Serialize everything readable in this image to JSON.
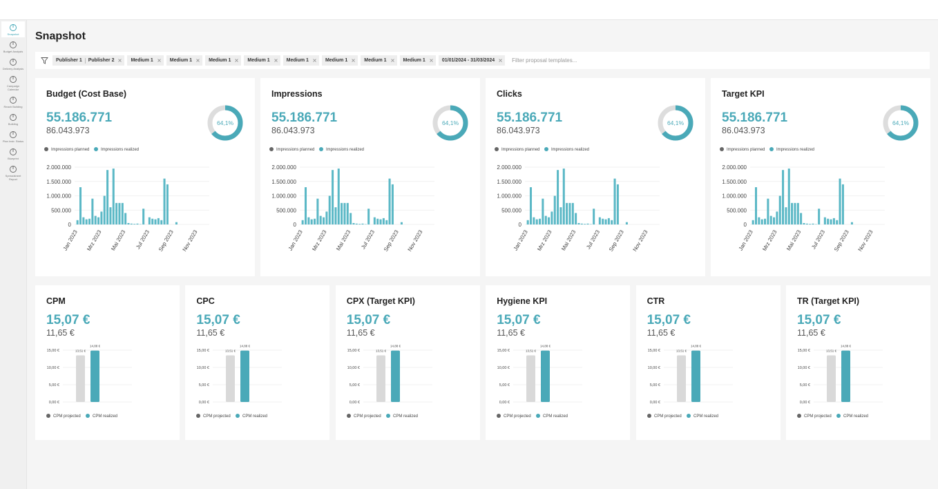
{
  "header": {
    "title": "Snapshot"
  },
  "sidebar": [
    "Snapshot",
    "Budget Analysis",
    "Delivery Analysis",
    "Campaign Calendar",
    "Reach Building",
    "Building",
    "Plan Instr. Status",
    "Blueprint",
    "Spreadsheet Report"
  ],
  "filters": {
    "chips": [
      [
        "Publisher 1",
        "Publisher 2"
      ],
      [
        "Medium 1"
      ],
      [
        "Medium 1"
      ],
      [
        "Medium 1"
      ],
      [
        "Medium 1"
      ],
      [
        "Medium 1"
      ],
      [
        "Medium 1"
      ],
      [
        "Medium 1"
      ],
      [
        "Medium 1"
      ],
      [
        "01/01/2024 - 31/03/2024"
      ]
    ],
    "placeholder": "Filter proposal templates..."
  },
  "chart_data": [
    {
      "type": "bar",
      "title": "Budget (Cost Base)",
      "kpi_value": "55.186.771",
      "kpi_sub": "86.043.973",
      "gauge_value": 64.1,
      "gauge_label": "64,1%",
      "color": "#5bb8c6",
      "legend": [
        {
          "name": "Impressions planned",
          "color": "#666666"
        },
        {
          "name": "Impressions realized",
          "color": "#4aa9b8"
        }
      ],
      "categories": [
        "Jan 2023",
        null,
        null,
        null,
        null,
        null,
        null,
        null,
        "Mrz 2023",
        null,
        null,
        null,
        null,
        null,
        null,
        null,
        "Mai 2023",
        null,
        null,
        null,
        null,
        null,
        null,
        null,
        "Jul 2023",
        null,
        null,
        null,
        null,
        null,
        null,
        null,
        "Sep 2023",
        null,
        null,
        null,
        null,
        null,
        null,
        null,
        "Nov 2023",
        null,
        null,
        null
      ],
      "values": [
        150000,
        1300000,
        250000,
        180000,
        200000,
        900000,
        300000,
        250000,
        450000,
        1000000,
        1900000,
        600000,
        1950000,
        750000,
        750000,
        750000,
        400000,
        50000,
        30000,
        20000,
        30000,
        10000,
        550000,
        0,
        250000,
        200000,
        180000,
        220000,
        150000,
        1600000,
        1400000,
        0,
        0,
        80000,
        0,
        0,
        0,
        0,
        0,
        0,
        0,
        0,
        0,
        0
      ],
      "ylim": [
        0,
        2000000
      ],
      "yticks": [
        0,
        {
          "value": 500000,
          "label": "500.000"
        },
        {
          "value": 1000000,
          "label": "1.000.000"
        },
        {
          "value": 1500000,
          "label": "1.500.000"
        },
        {
          "value": 2000000,
          "label": "2.000.000"
        }
      ],
      "grid": true
    },
    {
      "type": "bar",
      "title": "Impressions",
      "kpi_value": "55.186.771",
      "kpi_sub": "86.043.973",
      "gauge_value": 64.1,
      "gauge_label": "64,1%",
      "color": "#5bb8c6",
      "legend": [
        {
          "name": "Impressions planned",
          "color": "#666666"
        },
        {
          "name": "Impressions realized",
          "color": "#4aa9b8"
        }
      ],
      "categories": [
        "Jan 2023",
        null,
        null,
        null,
        null,
        null,
        null,
        null,
        "Mrz 2023",
        null,
        null,
        null,
        null,
        null,
        null,
        null,
        "Mai 2023",
        null,
        null,
        null,
        null,
        null,
        null,
        null,
        "Jul 2023",
        null,
        null,
        null,
        null,
        null,
        null,
        null,
        "Sep 2023",
        null,
        null,
        null,
        null,
        null,
        null,
        null,
        "Nov 2023",
        null,
        null,
        null
      ],
      "values": [
        150000,
        1300000,
        250000,
        180000,
        200000,
        900000,
        300000,
        250000,
        450000,
        1000000,
        1900000,
        600000,
        1950000,
        750000,
        750000,
        750000,
        400000,
        50000,
        30000,
        20000,
        30000,
        10000,
        550000,
        0,
        250000,
        200000,
        180000,
        220000,
        150000,
        1600000,
        1400000,
        0,
        0,
        80000,
        0,
        0,
        0,
        0,
        0,
        0,
        0,
        0,
        0,
        0
      ],
      "ylim": [
        0,
        2000000
      ],
      "yticks": [
        0,
        {
          "value": 500000,
          "label": "500.000"
        },
        {
          "value": 1000000,
          "label": "1.000.000"
        },
        {
          "value": 1500000,
          "label": "1.500.000"
        },
        {
          "value": 2000000,
          "label": "2.000.000"
        }
      ],
      "grid": true
    },
    {
      "type": "bar",
      "title": "Clicks",
      "kpi_value": "55.186.771",
      "kpi_sub": "86.043.973",
      "gauge_value": 64.1,
      "gauge_label": "64,1%",
      "color": "#5bb8c6",
      "legend": [
        {
          "name": "Impressions planned",
          "color": "#666666"
        },
        {
          "name": "Impressions realized",
          "color": "#4aa9b8"
        }
      ],
      "categories": [
        "Jan 2023",
        null,
        null,
        null,
        null,
        null,
        null,
        null,
        "Mrz 2023",
        null,
        null,
        null,
        null,
        null,
        null,
        null,
        "Mai 2023",
        null,
        null,
        null,
        null,
        null,
        null,
        null,
        "Jul 2023",
        null,
        null,
        null,
        null,
        null,
        null,
        null,
        "Sep 2023",
        null,
        null,
        null,
        null,
        null,
        null,
        null,
        "Nov 2023",
        null,
        null,
        null
      ],
      "values": [
        150000,
        1300000,
        250000,
        180000,
        200000,
        900000,
        300000,
        250000,
        450000,
        1000000,
        1900000,
        600000,
        1950000,
        750000,
        750000,
        750000,
        400000,
        50000,
        30000,
        20000,
        30000,
        10000,
        550000,
        0,
        250000,
        200000,
        180000,
        220000,
        150000,
        1600000,
        1400000,
        0,
        0,
        80000,
        0,
        0,
        0,
        0,
        0,
        0,
        0,
        0,
        0,
        0
      ],
      "ylim": [
        0,
        2000000
      ],
      "yticks": [
        0,
        {
          "value": 500000,
          "label": "500.000"
        },
        {
          "value": 1000000,
          "label": "1.000.000"
        },
        {
          "value": 1500000,
          "label": "1.500.000"
        },
        {
          "value": 2000000,
          "label": "2.000.000"
        }
      ],
      "grid": true
    },
    {
      "type": "bar",
      "title": "Target KPI",
      "kpi_value": "55.186.771",
      "kpi_sub": "86.043.973",
      "gauge_value": 64.1,
      "gauge_label": "64,1%",
      "color": "#5bb8c6",
      "legend": [
        {
          "name": "Impressions planned",
          "color": "#666666"
        },
        {
          "name": "Impressions realized",
          "color": "#4aa9b8"
        }
      ],
      "categories": [
        "Jan 2023",
        null,
        null,
        null,
        null,
        null,
        null,
        null,
        "Mrz 2023",
        null,
        null,
        null,
        null,
        null,
        null,
        null,
        "Mai 2023",
        null,
        null,
        null,
        null,
        null,
        null,
        null,
        "Jul 2023",
        null,
        null,
        null,
        null,
        null,
        null,
        null,
        "Sep 2023",
        null,
        null,
        null,
        null,
        null,
        null,
        null,
        "Nov 2023",
        null,
        null,
        null
      ],
      "values": [
        150000,
        1300000,
        250000,
        180000,
        200000,
        900000,
        300000,
        250000,
        450000,
        1000000,
        1900000,
        600000,
        1950000,
        750000,
        750000,
        750000,
        400000,
        50000,
        30000,
        20000,
        30000,
        10000,
        550000,
        0,
        250000,
        200000,
        180000,
        220000,
        150000,
        1600000,
        1400000,
        0,
        0,
        80000,
        0,
        0,
        0,
        0,
        0,
        0,
        0,
        0,
        0,
        0
      ],
      "ylim": [
        0,
        2000000
      ],
      "yticks": [
        0,
        {
          "value": 500000,
          "label": "500.000"
        },
        {
          "value": 1000000,
          "label": "1.000.000"
        },
        {
          "value": 1500000,
          "label": "1.500.000"
        },
        {
          "value": 2000000,
          "label": "2.000.000"
        }
      ],
      "grid": true
    },
    {
      "type": "grouped-bar",
      "title": "CPM",
      "kpi_value": "15,07 €",
      "kpi_sub": "11,65 €",
      "series": [
        {
          "name": "CPM projected",
          "color": "#d9d9d9",
          "values": [
            13.51
          ],
          "value_labels": [
            "13,51 €"
          ]
        },
        {
          "name": "CPM realized",
          "color": "#4aa9b8",
          "values": [
            14.88
          ],
          "value_labels": [
            "14,88 €"
          ]
        }
      ],
      "ylim": [
        0,
        15
      ],
      "yticks": [
        {
          "value": 0,
          "label": "0,00 €"
        },
        {
          "value": 5,
          "label": "5,00 €"
        },
        {
          "value": 10,
          "label": "10,00 €"
        },
        {
          "value": 15,
          "label": "15,00 €"
        }
      ],
      "grid": true
    },
    {
      "type": "grouped-bar",
      "title": "CPC",
      "kpi_value": "15,07 €",
      "kpi_sub": "11,65 €",
      "series": [
        {
          "name": "CPM projected",
          "color": "#d9d9d9",
          "values": [
            13.51
          ],
          "value_labels": [
            "13,51 €"
          ]
        },
        {
          "name": "CPM realized",
          "color": "#4aa9b8",
          "values": [
            14.88
          ],
          "value_labels": [
            "14,88 €"
          ]
        }
      ],
      "ylim": [
        0,
        15
      ],
      "yticks": [
        {
          "value": 0,
          "label": "0,00 €"
        },
        {
          "value": 5,
          "label": "5,00 €"
        },
        {
          "value": 10,
          "label": "10,00 €"
        },
        {
          "value": 15,
          "label": "15,00 €"
        }
      ],
      "grid": true
    },
    {
      "type": "grouped-bar",
      "title": "CPX (Target KPI)",
      "kpi_value": "15,07 €",
      "kpi_sub": "11,65 €",
      "series": [
        {
          "name": "CPM projected",
          "color": "#d9d9d9",
          "values": [
            13.51
          ],
          "value_labels": [
            "13,51 €"
          ]
        },
        {
          "name": "CPM realized",
          "color": "#4aa9b8",
          "values": [
            14.88
          ],
          "value_labels": [
            "14,88 €"
          ]
        }
      ],
      "ylim": [
        0,
        15
      ],
      "yticks": [
        {
          "value": 0,
          "label": "0,00 €"
        },
        {
          "value": 5,
          "label": "5,00 €"
        },
        {
          "value": 10,
          "label": "10,00 €"
        },
        {
          "value": 15,
          "label": "15,00 €"
        }
      ],
      "grid": true
    },
    {
      "type": "grouped-bar",
      "title": "Hygiene KPI",
      "kpi_value": "15,07 €",
      "kpi_sub": "11,65 €",
      "series": [
        {
          "name": "CPM projected",
          "color": "#d9d9d9",
          "values": [
            13.51
          ],
          "value_labels": [
            "13,51 €"
          ]
        },
        {
          "name": "CPM realized",
          "color": "#4aa9b8",
          "values": [
            14.88
          ],
          "value_labels": [
            "14,88 €"
          ]
        }
      ],
      "ylim": [
        0,
        15
      ],
      "yticks": [
        {
          "value": 0,
          "label": "0,00 €"
        },
        {
          "value": 5,
          "label": "5,00 €"
        },
        {
          "value": 10,
          "label": "10,00 €"
        },
        {
          "value": 15,
          "label": "15,00 €"
        }
      ],
      "grid": true
    },
    {
      "type": "grouped-bar",
      "title": "CTR",
      "kpi_value": "15,07 €",
      "kpi_sub": "11,65 €",
      "series": [
        {
          "name": "CPM projected",
          "color": "#d9d9d9",
          "values": [
            13.51
          ],
          "value_labels": [
            "13,51 €"
          ]
        },
        {
          "name": "CPM realized",
          "color": "#4aa9b8",
          "values": [
            14.88
          ],
          "value_labels": [
            "14,88 €"
          ]
        }
      ],
      "ylim": [
        0,
        15
      ],
      "yticks": [
        {
          "value": 0,
          "label": "0,00 €"
        },
        {
          "value": 5,
          "label": "5,00 €"
        },
        {
          "value": 10,
          "label": "10,00 €"
        },
        {
          "value": 15,
          "label": "15,00 €"
        }
      ],
      "grid": true
    },
    {
      "type": "grouped-bar",
      "title": "TR (Target KPI)",
      "kpi_value": "15,07 €",
      "kpi_sub": "11,65 €",
      "series": [
        {
          "name": "CPM projected",
          "color": "#d9d9d9",
          "values": [
            13.51
          ],
          "value_labels": [
            "13,51 €"
          ]
        },
        {
          "name": "CPM realized",
          "color": "#4aa9b8",
          "values": [
            14.88
          ],
          "value_labels": [
            "14,88 €"
          ]
        }
      ],
      "ylim": [
        0,
        15
      ],
      "yticks": [
        {
          "value": 0,
          "label": "0,00 €"
        },
        {
          "value": 5,
          "label": "5,00 €"
        },
        {
          "value": 10,
          "label": "10,00 €"
        },
        {
          "value": 15,
          "label": "15,00 €"
        }
      ],
      "grid": true
    }
  ]
}
